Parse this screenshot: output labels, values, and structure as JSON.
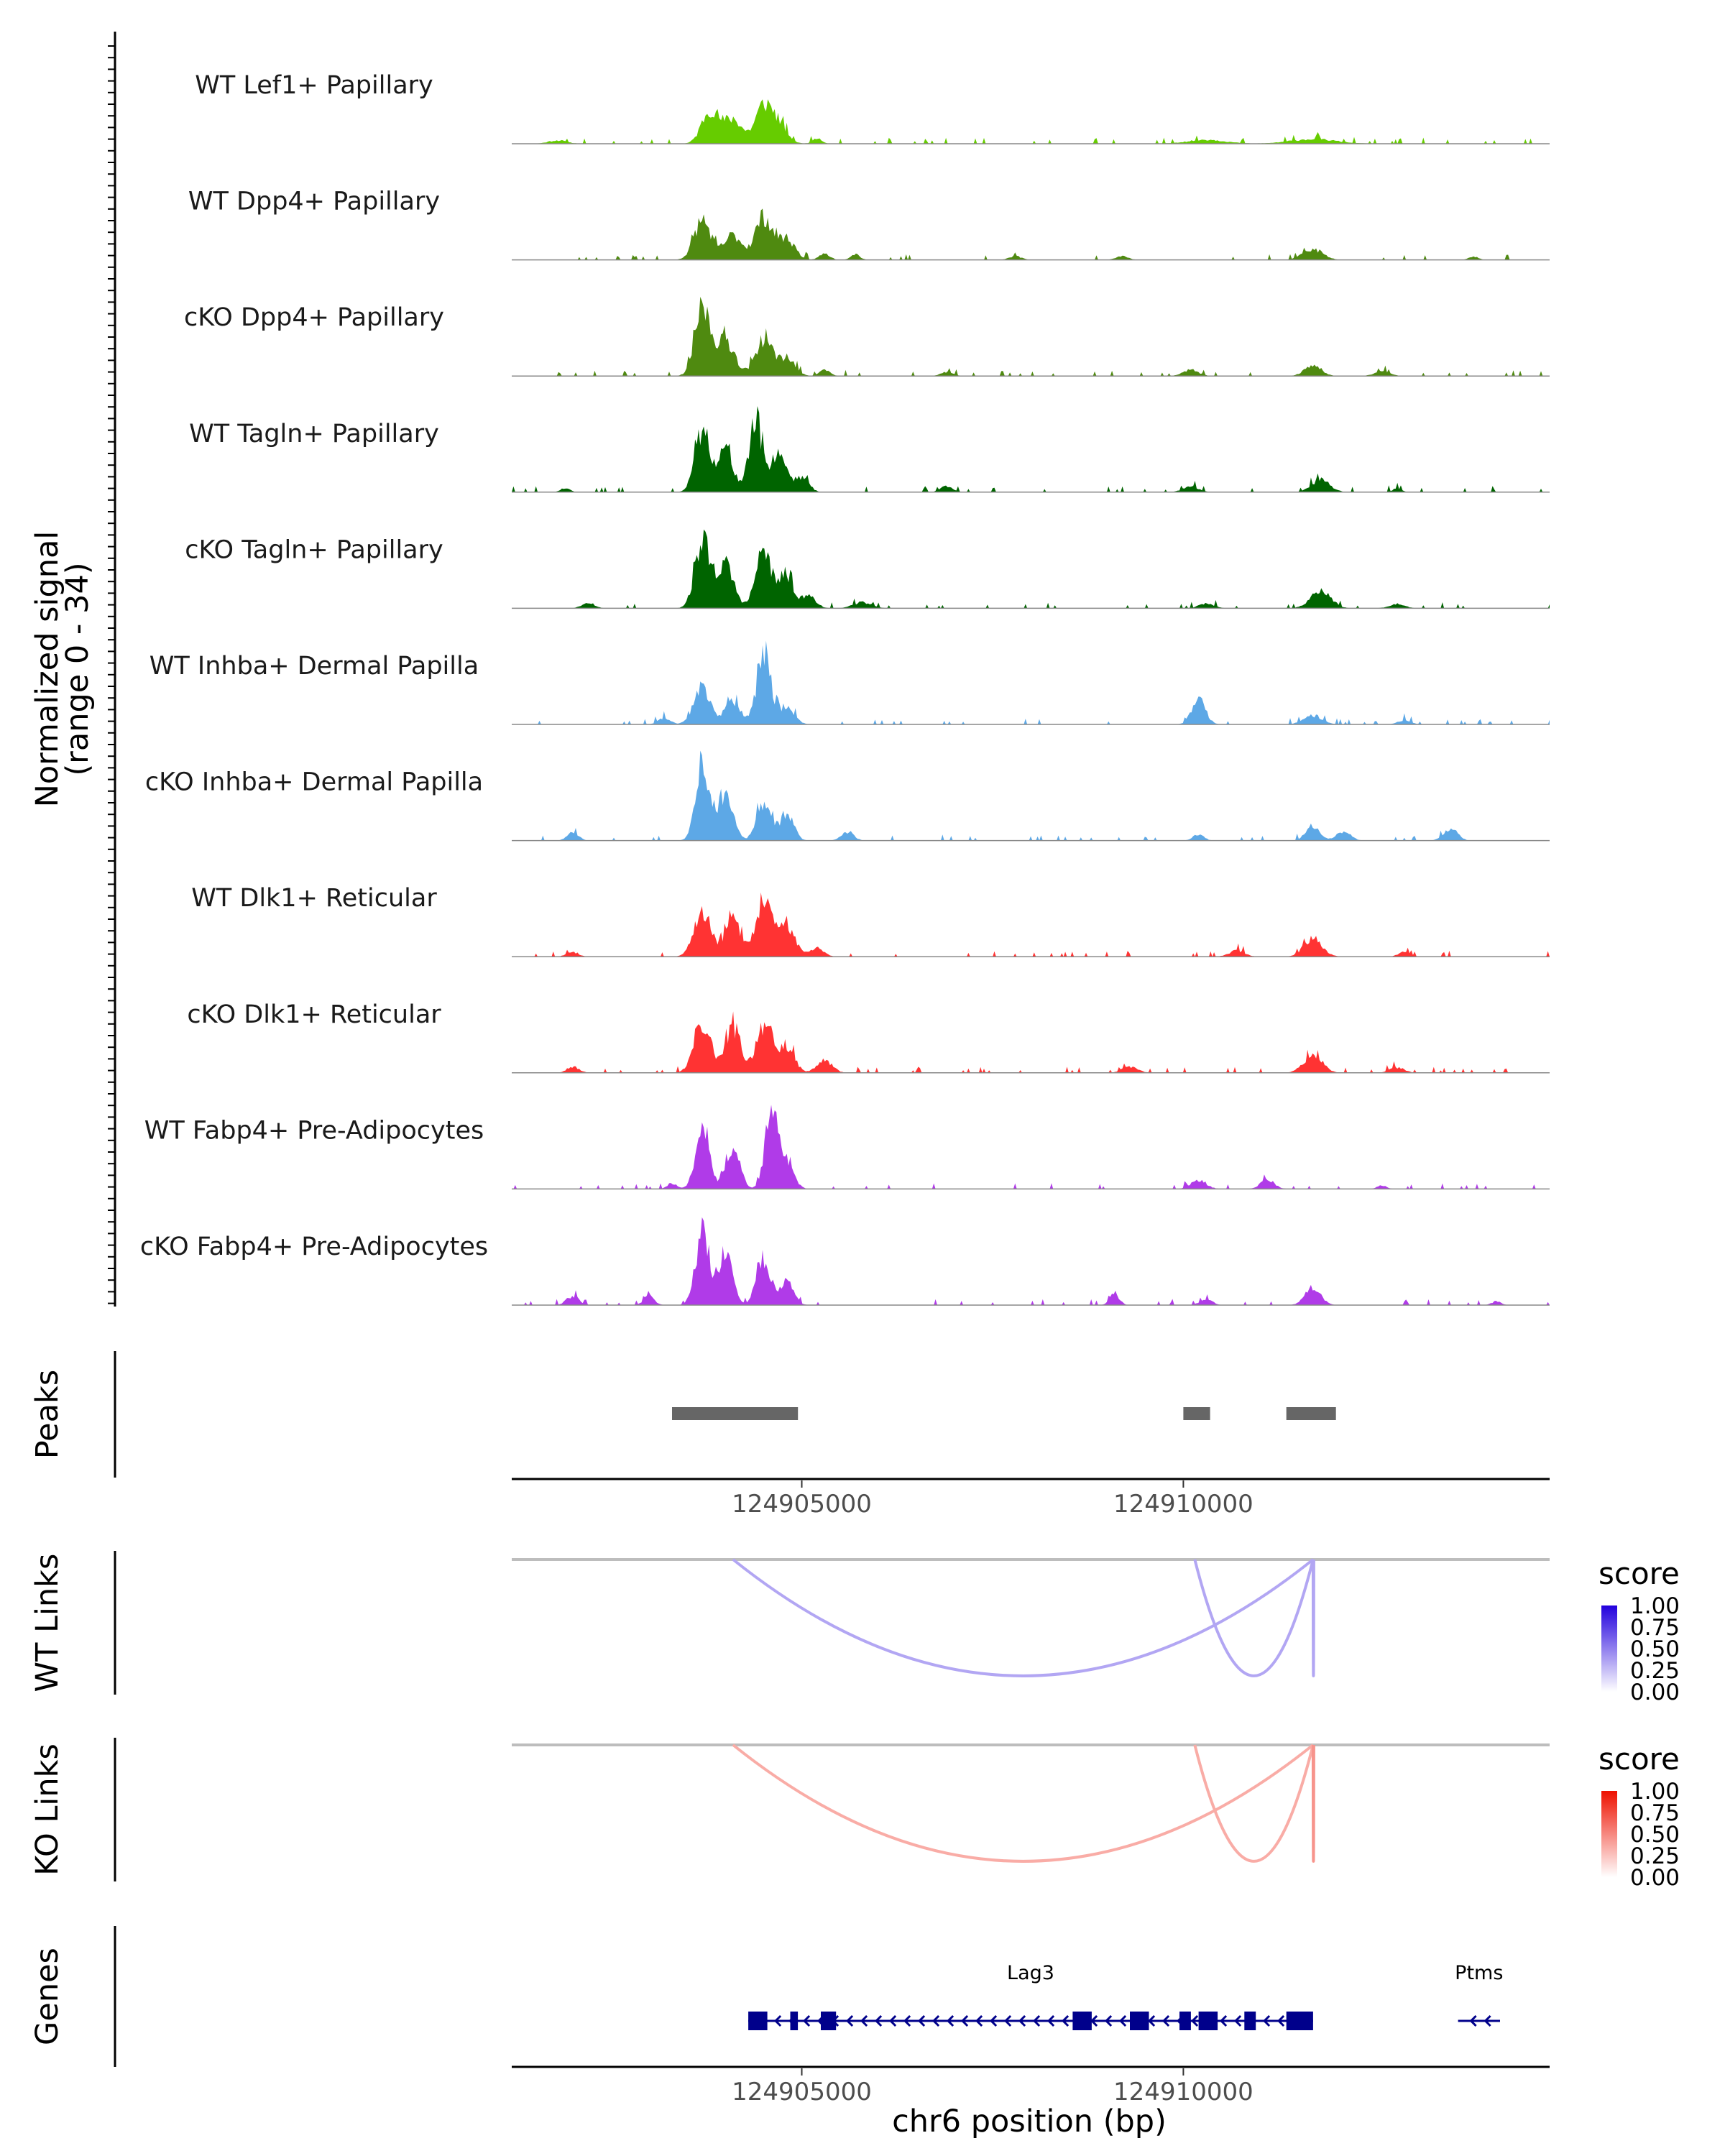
{
  "chart_data": {
    "type": "area",
    "title": "",
    "chromosome": "chr6",
    "xlim": [
      124901200,
      124914800
    ],
    "xlabel": "chr6 position (bp)",
    "x_ticks": [
      124905000,
      124910000
    ],
    "x_tick_labels": [
      "124905000",
      "124910000"
    ],
    "coverage": {
      "ylabel_line1": "Normalized signal",
      "ylabel_line2": "(range 0 - 34)",
      "ylim": [
        0,
        34
      ],
      "tracks": [
        {
          "name": "WT Lef1+ Papillary",
          "color": "#66CC00",
          "seed": 11,
          "peaks": [
            [
              124903800,
              11,
              110
            ],
            [
              124904100,
              8,
              120
            ],
            [
              124904500,
              12,
              110
            ],
            [
              124904700,
              6,
              110
            ],
            [
              124905200,
              2,
              60
            ],
            [
              124910300,
              1.3,
              250
            ],
            [
              124911700,
              1.5,
              300
            ],
            [
              124901800,
              1.1,
              120
            ]
          ]
        },
        {
          "name": "WT Dpp4+ Papillary",
          "color": "#4F8A10",
          "seed": 23,
          "peaks": [
            [
              124903700,
              13,
              110
            ],
            [
              124904100,
              8,
              120
            ],
            [
              124904500,
              14,
              110
            ],
            [
              124904800,
              7,
              110
            ],
            [
              124905300,
              2,
              70
            ],
            [
              124905700,
              2,
              60
            ],
            [
              124911700,
              3.5,
              130
            ],
            [
              124907800,
              1.2,
              80
            ],
            [
              124909200,
              1.2,
              80
            ],
            [
              124913800,
              1.1,
              60
            ]
          ]
        },
        {
          "name": "cKO Dpp4+ Papillary",
          "color": "#4F8A10",
          "seed": 37,
          "peaks": [
            [
              124903700,
              22,
              100
            ],
            [
              124904000,
              12,
              120
            ],
            [
              124904500,
              12,
              110
            ],
            [
              124904800,
              6,
              110
            ],
            [
              124905300,
              2,
              70
            ],
            [
              124910100,
              2,
              100
            ],
            [
              124911700,
              3.5,
              110
            ],
            [
              124912600,
              1.5,
              100
            ],
            [
              124906900,
              1.3,
              80
            ]
          ]
        },
        {
          "name": "WT Tagln+ Papillary",
          "color": "#006400",
          "seed": 41,
          "peaks": [
            [
              124903700,
              20,
              100
            ],
            [
              124904000,
              14,
              100
            ],
            [
              124904400,
              22,
              90
            ],
            [
              124904700,
              13,
              100
            ],
            [
              124905000,
              5,
              90
            ],
            [
              124910100,
              2,
              100
            ],
            [
              124911800,
              4,
              120
            ],
            [
              124901900,
              1.3,
              60
            ],
            [
              124906900,
              2,
              80
            ],
            [
              124912800,
              1.2,
              60
            ]
          ]
        },
        {
          "name": "cKO Tagln+ Papillary",
          "color": "#006400",
          "seed": 53,
          "peaks": [
            [
              124903700,
              22,
              100
            ],
            [
              124904000,
              14,
              110
            ],
            [
              124904500,
              19,
              100
            ],
            [
              124904800,
              10,
              100
            ],
            [
              124905100,
              4,
              90
            ],
            [
              124911800,
              6,
              130
            ],
            [
              124905800,
              2,
              120
            ],
            [
              124902200,
              2,
              80
            ],
            [
              124910300,
              1.5,
              100
            ],
            [
              124912800,
              1.5,
              100
            ]
          ]
        },
        {
          "name": "WT Inhba+ Dermal Papilla",
          "color": "#5DA8E6",
          "seed": 67,
          "peaks": [
            [
              124903700,
              12,
              110
            ],
            [
              124904100,
              8,
              100
            ],
            [
              124904500,
              22,
              90
            ],
            [
              124904800,
              6,
              100
            ],
            [
              124910200,
              8,
              90
            ],
            [
              124911700,
              3,
              120
            ],
            [
              124903200,
              2,
              80
            ],
            [
              124912900,
              1.5,
              80
            ]
          ]
        },
        {
          "name": "cKO Inhba+ Dermal Papilla",
          "color": "#5DA8E6",
          "seed": 79,
          "peaks": [
            [
              124903700,
              24,
              90
            ],
            [
              124904000,
              16,
              100
            ],
            [
              124904500,
              13,
              90
            ],
            [
              124904800,
              9,
              90
            ],
            [
              124905600,
              3,
              80
            ],
            [
              124911700,
              5,
              90
            ],
            [
              124912100,
              3,
              90
            ],
            [
              124913500,
              4,
              90
            ],
            [
              124902000,
              3,
              70
            ],
            [
              124910200,
              2,
              70
            ]
          ]
        },
        {
          "name": "WT Dlk1+ Reticular",
          "color": "#FF3333",
          "seed": 83,
          "peaks": [
            [
              124903700,
              15,
              110
            ],
            [
              124904100,
              12,
              110
            ],
            [
              124904500,
              19,
              100
            ],
            [
              124904800,
              10,
              110
            ],
            [
              124905200,
              3,
              90
            ],
            [
              124911700,
              6,
              120
            ],
            [
              124902000,
              1.5,
              80
            ],
            [
              124910700,
              2,
              100
            ],
            [
              124912900,
              1.5,
              80
            ]
          ]
        },
        {
          "name": "cKO Dlk1+ Reticular",
          "color": "#FF3333",
          "seed": 97,
          "peaks": [
            [
              124903700,
              16,
              110
            ],
            [
              124904100,
              15,
              100
            ],
            [
              124904500,
              16,
              100
            ],
            [
              124904800,
              9,
              100
            ],
            [
              124905300,
              4,
              100
            ],
            [
              124911700,
              6,
              120
            ],
            [
              124902000,
              2,
              80
            ],
            [
              124909300,
              2,
              100
            ],
            [
              124912800,
              1.8,
              100
            ]
          ]
        },
        {
          "name": "WT Fabp4+ Pre-Adipocytes",
          "color": "#B03BE8",
          "seed": 101,
          "peaks": [
            [
              124903700,
              20,
              90
            ],
            [
              124904100,
              14,
              90
            ],
            [
              124904600,
              26,
              80
            ],
            [
              124904800,
              10,
              90
            ],
            [
              124910200,
              3,
              100
            ],
            [
              124911100,
              3,
              90
            ],
            [
              124903300,
              2,
              60
            ],
            [
              124912600,
              1.2,
              60
            ]
          ]
        },
        {
          "name": "cKO Fabp4+ Pre-Adipocytes",
          "color": "#B03BE8",
          "seed": 113,
          "peaks": [
            [
              124903700,
              24,
              90
            ],
            [
              124904000,
              18,
              90
            ],
            [
              124904500,
              16,
              90
            ],
            [
              124904800,
              8,
              90
            ],
            [
              124911700,
              6,
              100
            ],
            [
              124902000,
              3,
              80
            ],
            [
              124903000,
              3,
              70
            ],
            [
              124909100,
              4,
              60
            ],
            [
              124910300,
              2,
              80
            ],
            [
              124914100,
              1.2,
              60
            ]
          ]
        }
      ]
    },
    "peaks": {
      "label": "Peaks",
      "color": "#666666",
      "regions": [
        [
          124903300,
          124904950
        ],
        [
          124910000,
          124910350
        ],
        [
          124911350,
          124912000
        ]
      ]
    },
    "links": [
      {
        "label": "WT Links",
        "legend_title": "score",
        "legend_ticks": [
          "1.00",
          "0.75",
          "0.50",
          "0.25",
          "0.00"
        ],
        "low_color": "#FFFFFF",
        "high_color": "#2200DD",
        "arcs": [
          {
            "start": 124904100,
            "end": 124911700,
            "score": 0.35
          },
          {
            "start": 124910150,
            "end": 124911700,
            "score": 0.35
          },
          {
            "start": 124911700,
            "end": 124911710,
            "score": 0.35
          }
        ]
      },
      {
        "label": "KO Links",
        "legend_title": "score",
        "legend_ticks": [
          "1.00",
          "0.75",
          "0.50",
          "0.25",
          "0.00"
        ],
        "low_color": "#FFFFFF",
        "high_color": "#EE1100",
        "arcs": [
          {
            "start": 124904100,
            "end": 124911700,
            "score": 0.35
          },
          {
            "start": 124910150,
            "end": 124911700,
            "score": 0.35
          },
          {
            "start": 124911700,
            "end": 124911710,
            "score": 0.45
          }
        ]
      }
    ],
    "genes": {
      "label": "Genes",
      "color": "#00008B",
      "items": [
        {
          "name": "Lag3",
          "strand": "-",
          "start": 124904300,
          "end": 124911700,
          "exons": [
            [
              124904300,
              124904550
            ],
            [
              124904850,
              124904950
            ],
            [
              124905250,
              124905450
            ],
            [
              124908550,
              124908800
            ],
            [
              124909300,
              124909550
            ],
            [
              124909950,
              124910100
            ],
            [
              124910200,
              124910450
            ],
            [
              124910800,
              124910950
            ],
            [
              124911350,
              124911700
            ]
          ]
        },
        {
          "name": "Ptms",
          "strand": "-",
          "start": 124913600,
          "end": 124914150,
          "exons": []
        }
      ]
    }
  }
}
